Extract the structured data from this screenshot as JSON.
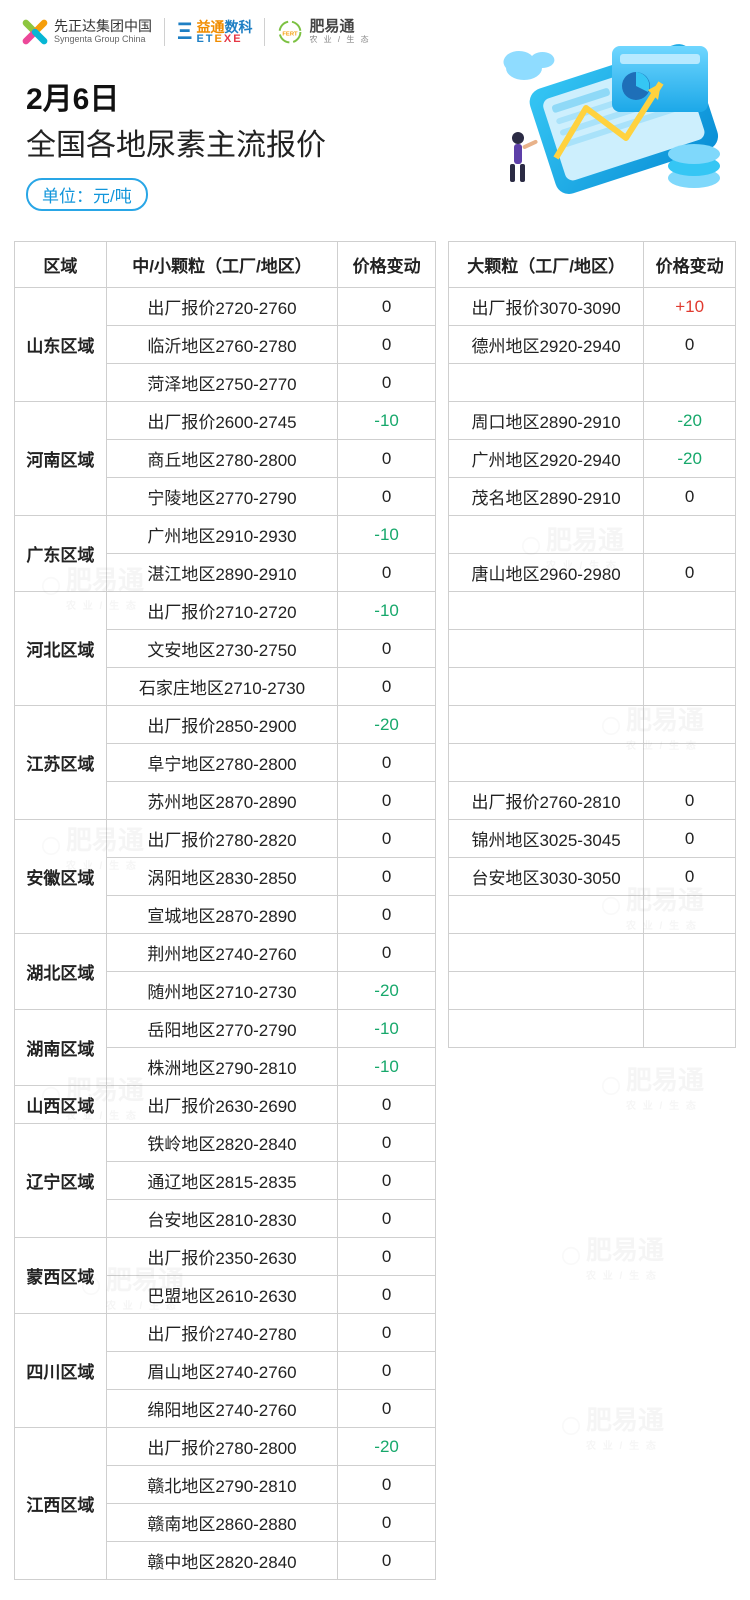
{
  "logos": {
    "syngenta_cn": "先正达集团中国",
    "syngenta_en": "Syngenta Group China",
    "etexe_cn_1": "益通",
    "etexe_cn_2": "数科",
    "etexe_en": "ETEXE",
    "fyt_cn": "肥易通",
    "fyt_sub": "农 业 / 生 态"
  },
  "header": {
    "date": "2月6日",
    "title": "全国各地尿素主流报价",
    "unit": "单位：元/吨"
  },
  "columns": {
    "region": "区域",
    "small_desc": "中/小颗粒（工厂/地区）",
    "small_chg": "价格变动",
    "large_desc": "大颗粒（工厂/地区）",
    "large_chg": "价格变动"
  },
  "colors": {
    "pos": "#e03a2f",
    "neg": "#17a86b",
    "border": "#cfcfcf",
    "badge": "#1296db"
  },
  "regions": [
    {
      "name": "山东区域",
      "small": [
        {
          "desc": "出厂报价2720-2760",
          "chg": "0"
        },
        {
          "desc": "临沂地区2760-2780",
          "chg": "0"
        },
        {
          "desc": "菏泽地区2750-2770",
          "chg": "0"
        }
      ],
      "large": [
        {
          "desc": "出厂报价3070-3090",
          "chg": "+10"
        },
        {
          "desc": "德州地区2920-2940",
          "chg": "0"
        },
        null
      ]
    },
    {
      "name": "河南区域",
      "small": [
        {
          "desc": "出厂报价2600-2745",
          "chg": "-10"
        },
        {
          "desc": "商丘地区2780-2800",
          "chg": "0"
        },
        {
          "desc": "宁陵地区2770-2790",
          "chg": "0"
        }
      ],
      "large": [
        {
          "desc": "周口地区2890-2910",
          "chg": "-20",
          "rowspan": 3
        }
      ]
    },
    {
      "name": "广东区域",
      "small": [
        {
          "desc": "广州地区2910-2930",
          "chg": "-10"
        },
        {
          "desc": "湛江地区2890-2910",
          "chg": "0"
        }
      ],
      "large": [
        {
          "desc": "广州地区2920-2940",
          "chg": "-20"
        },
        {
          "desc": "茂名地区2890-2910",
          "chg": "0"
        }
      ]
    },
    {
      "name": "河北区域",
      "small": [
        {
          "desc": "出厂报价2710-2720",
          "chg": "-10"
        },
        {
          "desc": "文安地区2730-2750",
          "chg": "0"
        },
        {
          "desc": "石家庄地区2710-2730",
          "chg": "0"
        }
      ],
      "large": [
        null,
        {
          "desc": "唐山地区2960-2980",
          "chg": "0"
        },
        null
      ],
      "large_merge_first_last": true
    },
    {
      "name": "江苏区域",
      "small": [
        {
          "desc": "出厂报价2850-2900",
          "chg": "-20"
        },
        {
          "desc": "阜宁地区2780-2800",
          "chg": "0"
        },
        {
          "desc": "苏州地区2870-2890",
          "chg": "0"
        }
      ],
      "large": [
        {
          "blank": true,
          "rowspan": 3
        }
      ]
    },
    {
      "name": "安徽区域",
      "small": [
        {
          "desc": "出厂报价2780-2820",
          "chg": "0"
        },
        {
          "desc": "涡阳地区2830-2850",
          "chg": "0"
        },
        {
          "desc": "宣城地区2870-2890",
          "chg": "0"
        }
      ],
      "large": [
        {
          "blank": true,
          "rowspan": 3
        }
      ]
    },
    {
      "name": "湖北区域",
      "small": [
        {
          "desc": "荆州地区2740-2760",
          "chg": "0"
        },
        {
          "desc": "随州地区2710-2730",
          "chg": "-20"
        }
      ],
      "large": [
        {
          "blank": true,
          "rowspan": 2
        }
      ]
    },
    {
      "name": "湖南区域",
      "small": [
        {
          "desc": "岳阳地区2770-2790",
          "chg": "-10"
        },
        {
          "desc": "株洲地区2790-2810",
          "chg": "-10"
        }
      ],
      "large": [
        {
          "blank": true,
          "rowspan": 2
        }
      ]
    },
    {
      "name": "山西区域",
      "small": [
        {
          "desc": "出厂报价2630-2690",
          "chg": "0"
        }
      ],
      "large": [
        {
          "desc": "出厂报价2760-2810",
          "chg": "0"
        }
      ]
    },
    {
      "name": "辽宁区域",
      "small": [
        {
          "desc": "铁岭地区2820-2840",
          "chg": "0"
        },
        {
          "desc": "通辽地区2815-2835",
          "chg": "0"
        },
        {
          "desc": "台安地区2810-2830",
          "chg": "0"
        }
      ],
      "large": [
        {
          "desc": "锦州地区3025-3045",
          "chg": "0"
        },
        {
          "desc": "台安地区3030-3050",
          "chg": "0"
        },
        null
      ]
    },
    {
      "name": "蒙西区域",
      "small": [
        {
          "desc": "出厂报价2350-2630",
          "chg": "0"
        },
        {
          "desc": "巴盟地区2610-2630",
          "chg": "0"
        }
      ],
      "large": [
        {
          "blank": true,
          "rowspan": 2
        }
      ]
    },
    {
      "name": "四川区域",
      "small": [
        {
          "desc": "出厂报价2740-2780",
          "chg": "0"
        },
        {
          "desc": "眉山地区2740-2760",
          "chg": "0"
        },
        {
          "desc": "绵阳地区2740-2760",
          "chg": "0"
        }
      ],
      "large": [
        {
          "blank": true,
          "rowspan": 3
        }
      ]
    },
    {
      "name": "江西区域",
      "small": [
        {
          "desc": "出厂报价2780-2800",
          "chg": "-20"
        },
        {
          "desc": "赣北地区2790-2810",
          "chg": "0"
        },
        {
          "desc": "赣南地区2860-2880",
          "chg": "0"
        },
        {
          "desc": "赣中地区2820-2840",
          "chg": "0"
        }
      ],
      "large": [
        {
          "blank": true,
          "rowspan": 4
        }
      ]
    }
  ],
  "watermark": {
    "text": "肥易通",
    "sub": "农 业 / 生 态"
  }
}
